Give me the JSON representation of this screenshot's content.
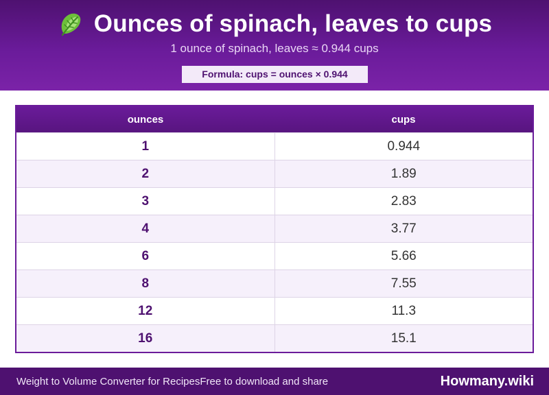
{
  "header": {
    "title": "Ounces of spinach, leaves to cups",
    "icon": "leafy-greens-icon",
    "subtitle": "1 ounce of spinach, leaves ≈ 0.944 cups",
    "formula": "Formula: cups = ounces × 0.944"
  },
  "table": {
    "columns": [
      "ounces",
      "cups"
    ],
    "rows": [
      {
        "ounces": "1",
        "cups": "0.944"
      },
      {
        "ounces": "2",
        "cups": "1.89"
      },
      {
        "ounces": "3",
        "cups": "2.83"
      },
      {
        "ounces": "4",
        "cups": "3.77"
      },
      {
        "ounces": "6",
        "cups": "5.66"
      },
      {
        "ounces": "8",
        "cups": "7.55"
      },
      {
        "ounces": "12",
        "cups": "11.3"
      },
      {
        "ounces": "16",
        "cups": "15.1"
      }
    ]
  },
  "footer": {
    "left": "Weight to Volume Converter for Recipes",
    "middle": "Free to download and share",
    "brand": "Howmany.wiki"
  },
  "colors": {
    "accent": "#6a1b9a",
    "dark": "#4e1170",
    "row_alt": "#f6f0fb"
  }
}
